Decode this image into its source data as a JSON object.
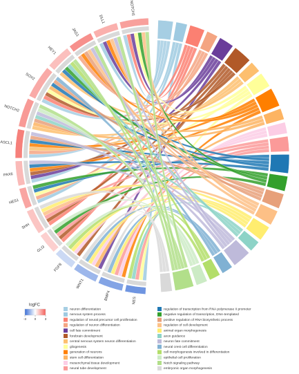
{
  "chart_data": {
    "type": "chord",
    "legend_title": "logFC",
    "logfc_lim": [
      -3,
      3
    ],
    "logfc_ticks": [
      -3,
      0,
      3
    ],
    "logfc_colors": [
      "#3b6fd6",
      "#ffffff",
      "#f4605a"
    ],
    "genes": [
      {
        "name": "NOTCH1",
        "logFC": 1.8
      },
      {
        "name": "DLL1",
        "logFC": 1.5
      },
      {
        "name": "JAG1",
        "logFC": 2.1
      },
      {
        "name": "HEY1",
        "logFC": 1.2
      },
      {
        "name": "SOX2",
        "logFC": 1.6
      },
      {
        "name": "NOTCH2",
        "logFC": 1.9
      },
      {
        "name": "ASCL1",
        "logFC": 2.4
      },
      {
        "name": "PAX6",
        "logFC": 1.3
      },
      {
        "name": "HES1",
        "logFC": 1.7
      },
      {
        "name": "SHH",
        "logFC": 1.1
      },
      {
        "name": "GLI3",
        "logFC": 0.9
      },
      {
        "name": "FGF8",
        "logFC": -0.8
      },
      {
        "name": "WNT1",
        "logFC": -1.5
      },
      {
        "name": "BMP4",
        "logFC": -1.9
      },
      {
        "name": "NES",
        "logFC": -2.2
      }
    ],
    "terms": [
      {
        "name": "neuron differentiation",
        "color": "#a6cee3",
        "genes": [
          "NOTCH1",
          "ASCL1",
          "PAX6",
          "SOX2"
        ]
      },
      {
        "name": "nervous system process",
        "color": "#9ecae1",
        "genes": [
          "DLL1",
          "HES1",
          "NES"
        ]
      },
      {
        "name": "regulation of neural precursor cell proliferation",
        "color": "#fb8072",
        "genes": [
          "SOX2",
          "NOTCH1",
          "SHH",
          "GLI3"
        ]
      },
      {
        "name": "regulation of neuron differentiation",
        "color": "#f4a582",
        "genes": [
          "ASCL1",
          "HES1",
          "JAG1"
        ]
      },
      {
        "name": "cell fate commitment",
        "color": "#6a3d9a",
        "genes": [
          "NOTCH1",
          "DLL1",
          "PAX6",
          "WNT1"
        ]
      },
      {
        "name": "forebrain development",
        "color": "#b15928",
        "genes": [
          "PAX6",
          "SHH",
          "FGF8",
          "GLI3",
          "SOX2"
        ]
      },
      {
        "name": "central nervous system neuron differentiation",
        "color": "#fdbf6f",
        "genes": [
          "ASCL1",
          "NOTCH2",
          "HEY1"
        ]
      },
      {
        "name": "gliogenesis",
        "color": "#ffff99",
        "genes": [
          "NOTCH1",
          "HES1",
          "SOX2",
          "NES"
        ]
      },
      {
        "name": "generation of neurons",
        "color": "#ff7f00",
        "genes": [
          "ASCL1",
          "JAG1",
          "DLL1",
          "PAX6",
          "BMP4"
        ]
      },
      {
        "name": "stem cell differentiation",
        "color": "#fdb462",
        "genes": [
          "SOX2",
          "NOTCH2",
          "WNT1"
        ]
      },
      {
        "name": "mesenchymal tissue development",
        "color": "#fccde5",
        "genes": [
          "BMP4",
          "WNT1",
          "FGF8"
        ]
      },
      {
        "name": "neural tube development",
        "color": "#fb9a99",
        "genes": [
          "SHH",
          "GLI3",
          "BMP4",
          "NES"
        ]
      },
      {
        "name": "regulation of transcription from RNA polymerase II promoter",
        "color": "#1f78b4",
        "genes": [
          "HES1",
          "HEY1",
          "ASCL1",
          "SOX2",
          "PAX6"
        ]
      },
      {
        "name": "negative regulation of transcription, DNA-templated",
        "color": "#33a02c",
        "genes": [
          "HES1",
          "HEY1",
          "NOTCH1",
          "GLI3"
        ]
      },
      {
        "name": "positive regulation of RNA biosynthetic process",
        "color": "#e7a07a",
        "genes": [
          "ASCL1",
          "SOX2",
          "NOTCH2",
          "JAG1"
        ]
      },
      {
        "name": "regulation of cell development",
        "color": "#fdc086",
        "genes": [
          "DLL1",
          "NOTCH1",
          "JAG1",
          "SHH"
        ]
      },
      {
        "name": "animal organ morphogenesis",
        "color": "#ffed6f",
        "genes": [
          "SHH",
          "BMP4",
          "FGF8",
          "WNT1"
        ]
      },
      {
        "name": "axon guidance",
        "color": "#8dd3c7",
        "genes": [
          "NES",
          "NOTCH2",
          "HEY1"
        ]
      },
      {
        "name": "neuron fate commitment",
        "color": "#bebada",
        "genes": [
          "ASCL1",
          "PAX6",
          "DLL1",
          "JAG1",
          "NOTCH2"
        ]
      },
      {
        "name": "neural crest cell differentiation",
        "color": "#80b1d3",
        "genes": [
          "WNT1",
          "BMP4",
          "SOX2"
        ]
      },
      {
        "name": "cell morphogenesis involved in differentiation",
        "color": "#b3de69",
        "genes": [
          "NES",
          "HEY1",
          "FGF8"
        ]
      },
      {
        "name": "epithelial cell proliferation",
        "color": "#ccebc5",
        "genes": [
          "FGF8",
          "GLI3",
          "NOTCH2"
        ]
      },
      {
        "name": "Notch signaling pathway",
        "color": "#b2df8a",
        "genes": [
          "NOTCH1",
          "NOTCH2",
          "DLL1",
          "JAG1",
          "HEY1"
        ]
      },
      {
        "name": "embryonic organ morphogenesis",
        "color": "#d9d9d9",
        "genes": [
          "SHH",
          "WNT1",
          "BMP4"
        ]
      }
    ]
  }
}
